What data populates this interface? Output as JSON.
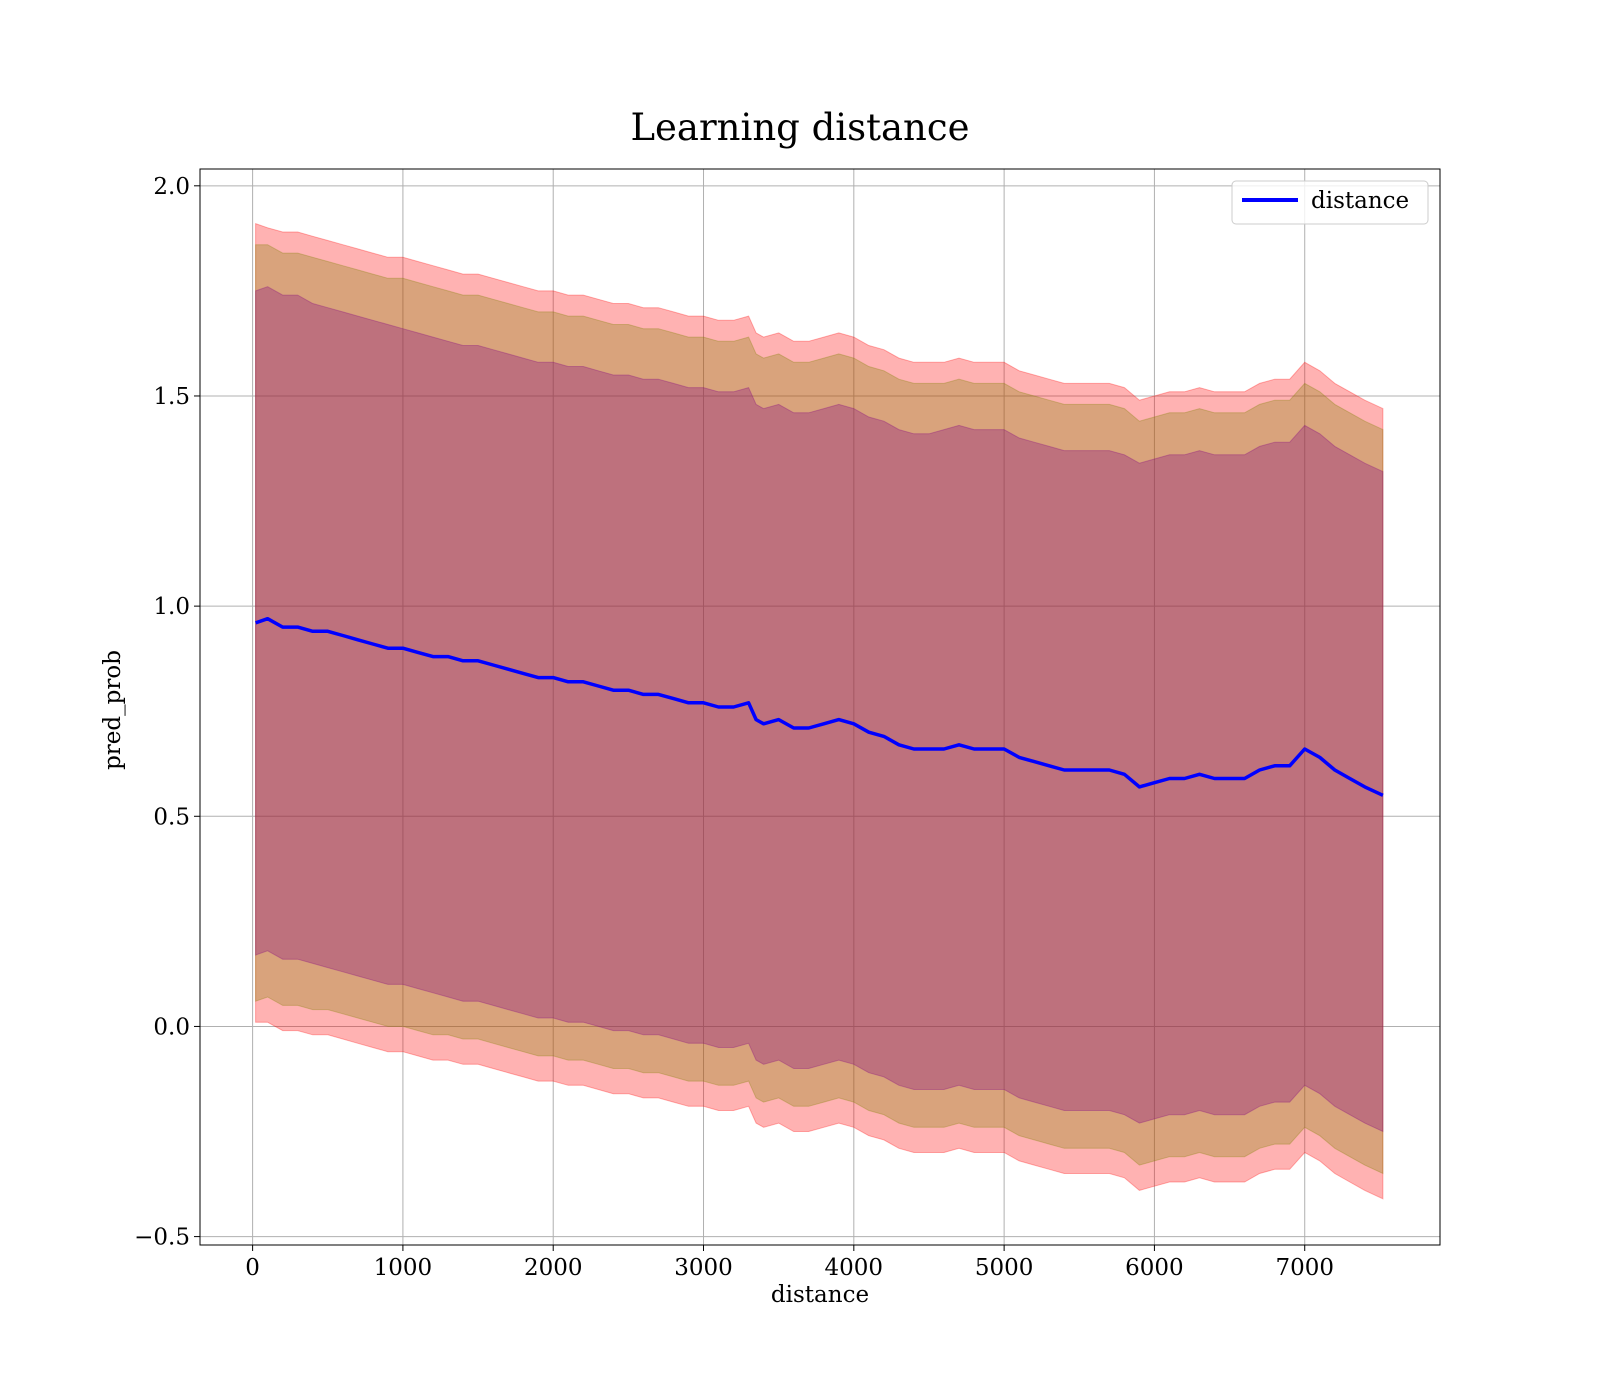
{
  "chart_data": {
    "type": "line",
    "title": "Learning distance",
    "xlabel": "distance",
    "ylabel": "pred_prob",
    "xlim": [
      -350,
      7900
    ],
    "ylim": [
      -0.52,
      2.04
    ],
    "xticks": [
      0,
      1000,
      2000,
      3000,
      4000,
      5000,
      6000,
      7000
    ],
    "yticks": [
      -0.5,
      0.0,
      0.5,
      1.0,
      1.5,
      2.0
    ],
    "xtick_labels": [
      "0",
      "1000",
      "2000",
      "3000",
      "4000",
      "5000",
      "6000",
      "7000"
    ],
    "ytick_labels": [
      "−0.5",
      "0.0",
      "0.5",
      "1.0",
      "1.5",
      "2.0"
    ],
    "grid": true,
    "legend_position": "top-right",
    "legend": [
      "distance"
    ],
    "series": [
      {
        "name": "distance",
        "color": "#0000ff",
        "x": [
          20,
          100,
          200,
          300,
          400,
          500,
          600,
          700,
          800,
          900,
          1000,
          1100,
          1200,
          1300,
          1400,
          1500,
          1600,
          1700,
          1800,
          1900,
          2000,
          2100,
          2200,
          2300,
          2400,
          2500,
          2600,
          2700,
          2800,
          2900,
          3000,
          3100,
          3200,
          3300,
          3350,
          3400,
          3500,
          3600,
          3700,
          3800,
          3900,
          4000,
          4100,
          4200,
          4300,
          4400,
          4500,
          4600,
          4700,
          4800,
          4900,
          5000,
          5100,
          5200,
          5300,
          5400,
          5500,
          5600,
          5700,
          5800,
          5900,
          6000,
          6100,
          6200,
          6300,
          6400,
          6500,
          6600,
          6700,
          6800,
          6900,
          7000,
          7100,
          7200,
          7300,
          7400,
          7520
        ],
        "y": [
          0.96,
          0.97,
          0.95,
          0.95,
          0.94,
          0.94,
          0.93,
          0.92,
          0.91,
          0.9,
          0.9,
          0.89,
          0.88,
          0.88,
          0.87,
          0.87,
          0.86,
          0.85,
          0.84,
          0.83,
          0.83,
          0.82,
          0.82,
          0.81,
          0.8,
          0.8,
          0.79,
          0.79,
          0.78,
          0.77,
          0.77,
          0.76,
          0.76,
          0.77,
          0.73,
          0.72,
          0.73,
          0.71,
          0.71,
          0.72,
          0.73,
          0.72,
          0.7,
          0.69,
          0.67,
          0.66,
          0.66,
          0.66,
          0.67,
          0.66,
          0.66,
          0.66,
          0.64,
          0.63,
          0.62,
          0.61,
          0.61,
          0.61,
          0.61,
          0.6,
          0.57,
          0.58,
          0.59,
          0.59,
          0.6,
          0.59,
          0.59,
          0.59,
          0.61,
          0.62,
          0.62,
          0.66,
          0.64,
          0.61,
          0.59,
          0.57,
          0.55
        ]
      }
    ],
    "bands": [
      {
        "color": "#ff0000",
        "opacity": 0.3,
        "upper": [
          1.91,
          1.9,
          1.89,
          1.89,
          1.88,
          1.87,
          1.86,
          1.85,
          1.84,
          1.83,
          1.83,
          1.82,
          1.81,
          1.8,
          1.79,
          1.79,
          1.78,
          1.77,
          1.76,
          1.75,
          1.75,
          1.74,
          1.74,
          1.73,
          1.72,
          1.72,
          1.71,
          1.71,
          1.7,
          1.69,
          1.69,
          1.68,
          1.68,
          1.69,
          1.65,
          1.64,
          1.65,
          1.63,
          1.63,
          1.64,
          1.65,
          1.64,
          1.62,
          1.61,
          1.59,
          1.58,
          1.58,
          1.58,
          1.59,
          1.58,
          1.58,
          1.58,
          1.56,
          1.55,
          1.54,
          1.53,
          1.53,
          1.53,
          1.53,
          1.52,
          1.49,
          1.5,
          1.51,
          1.51,
          1.52,
          1.51,
          1.51,
          1.51,
          1.53,
          1.54,
          1.54,
          1.58,
          1.56,
          1.53,
          1.51,
          1.49,
          1.47
        ],
        "lower": [
          0.01,
          0.01,
          -0.01,
          -0.01,
          -0.02,
          -0.02,
          -0.03,
          -0.04,
          -0.05,
          -0.06,
          -0.06,
          -0.07,
          -0.08,
          -0.08,
          -0.09,
          -0.09,
          -0.1,
          -0.11,
          -0.12,
          -0.13,
          -0.13,
          -0.14,
          -0.14,
          -0.15,
          -0.16,
          -0.16,
          -0.17,
          -0.17,
          -0.18,
          -0.19,
          -0.19,
          -0.2,
          -0.2,
          -0.19,
          -0.23,
          -0.24,
          -0.23,
          -0.25,
          -0.25,
          -0.24,
          -0.23,
          -0.24,
          -0.26,
          -0.27,
          -0.29,
          -0.3,
          -0.3,
          -0.3,
          -0.29,
          -0.3,
          -0.3,
          -0.3,
          -0.32,
          -0.33,
          -0.34,
          -0.35,
          -0.35,
          -0.35,
          -0.35,
          -0.36,
          -0.39,
          -0.38,
          -0.37,
          -0.37,
          -0.36,
          -0.37,
          -0.37,
          -0.37,
          -0.35,
          -0.34,
          -0.34,
          -0.3,
          -0.32,
          -0.35,
          -0.37,
          -0.39,
          -0.41
        ]
      },
      {
        "color": "#808000",
        "opacity": 0.3,
        "upper": [
          1.86,
          1.86,
          1.84,
          1.84,
          1.83,
          1.82,
          1.81,
          1.8,
          1.79,
          1.78,
          1.78,
          1.77,
          1.76,
          1.75,
          1.74,
          1.74,
          1.73,
          1.72,
          1.71,
          1.7,
          1.7,
          1.69,
          1.69,
          1.68,
          1.67,
          1.67,
          1.66,
          1.66,
          1.65,
          1.64,
          1.64,
          1.63,
          1.63,
          1.64,
          1.6,
          1.59,
          1.6,
          1.58,
          1.58,
          1.59,
          1.6,
          1.59,
          1.57,
          1.56,
          1.54,
          1.53,
          1.53,
          1.53,
          1.54,
          1.53,
          1.53,
          1.53,
          1.51,
          1.5,
          1.49,
          1.48,
          1.48,
          1.48,
          1.48,
          1.47,
          1.44,
          1.45,
          1.46,
          1.46,
          1.47,
          1.46,
          1.46,
          1.46,
          1.48,
          1.49,
          1.49,
          1.53,
          1.51,
          1.48,
          1.46,
          1.44,
          1.42
        ],
        "lower": [
          0.06,
          0.07,
          0.05,
          0.05,
          0.04,
          0.04,
          0.03,
          0.02,
          0.01,
          0.0,
          0.0,
          -0.01,
          -0.02,
          -0.02,
          -0.03,
          -0.03,
          -0.04,
          -0.05,
          -0.06,
          -0.07,
          -0.07,
          -0.08,
          -0.08,
          -0.09,
          -0.1,
          -0.1,
          -0.11,
          -0.11,
          -0.12,
          -0.13,
          -0.13,
          -0.14,
          -0.14,
          -0.13,
          -0.17,
          -0.18,
          -0.17,
          -0.19,
          -0.19,
          -0.18,
          -0.17,
          -0.18,
          -0.2,
          -0.21,
          -0.23,
          -0.24,
          -0.24,
          -0.24,
          -0.23,
          -0.24,
          -0.24,
          -0.24,
          -0.26,
          -0.27,
          -0.28,
          -0.29,
          -0.29,
          -0.29,
          -0.29,
          -0.3,
          -0.33,
          -0.32,
          -0.31,
          -0.31,
          -0.3,
          -0.31,
          -0.31,
          -0.31,
          -0.29,
          -0.28,
          -0.28,
          -0.24,
          -0.26,
          -0.29,
          -0.31,
          -0.33,
          -0.35
        ]
      },
      {
        "color": "#800080",
        "opacity": 0.3,
        "upper": [
          1.75,
          1.76,
          1.74,
          1.74,
          1.72,
          1.71,
          1.7,
          1.69,
          1.68,
          1.67,
          1.66,
          1.65,
          1.64,
          1.63,
          1.62,
          1.62,
          1.61,
          1.6,
          1.59,
          1.58,
          1.58,
          1.57,
          1.57,
          1.56,
          1.55,
          1.55,
          1.54,
          1.54,
          1.53,
          1.52,
          1.52,
          1.51,
          1.51,
          1.52,
          1.48,
          1.47,
          1.48,
          1.46,
          1.46,
          1.47,
          1.48,
          1.47,
          1.45,
          1.44,
          1.42,
          1.41,
          1.41,
          1.42,
          1.43,
          1.42,
          1.42,
          1.42,
          1.4,
          1.39,
          1.38,
          1.37,
          1.37,
          1.37,
          1.37,
          1.36,
          1.34,
          1.35,
          1.36,
          1.36,
          1.37,
          1.36,
          1.36,
          1.36,
          1.38,
          1.39,
          1.39,
          1.43,
          1.41,
          1.38,
          1.36,
          1.34,
          1.32
        ],
        "lower": [
          0.17,
          0.18,
          0.16,
          0.16,
          0.15,
          0.14,
          0.13,
          0.12,
          0.11,
          0.1,
          0.1,
          0.09,
          0.08,
          0.07,
          0.06,
          0.06,
          0.05,
          0.04,
          0.03,
          0.02,
          0.02,
          0.01,
          0.01,
          0.0,
          -0.01,
          -0.01,
          -0.02,
          -0.02,
          -0.03,
          -0.04,
          -0.04,
          -0.05,
          -0.05,
          -0.04,
          -0.08,
          -0.09,
          -0.08,
          -0.1,
          -0.1,
          -0.09,
          -0.08,
          -0.09,
          -0.11,
          -0.12,
          -0.14,
          -0.15,
          -0.15,
          -0.15,
          -0.14,
          -0.15,
          -0.15,
          -0.15,
          -0.17,
          -0.18,
          -0.19,
          -0.2,
          -0.2,
          -0.2,
          -0.2,
          -0.21,
          -0.23,
          -0.22,
          -0.21,
          -0.21,
          -0.2,
          -0.21,
          -0.21,
          -0.21,
          -0.19,
          -0.18,
          -0.18,
          -0.14,
          -0.16,
          -0.19,
          -0.21,
          -0.23,
          -0.25
        ]
      }
    ]
  }
}
